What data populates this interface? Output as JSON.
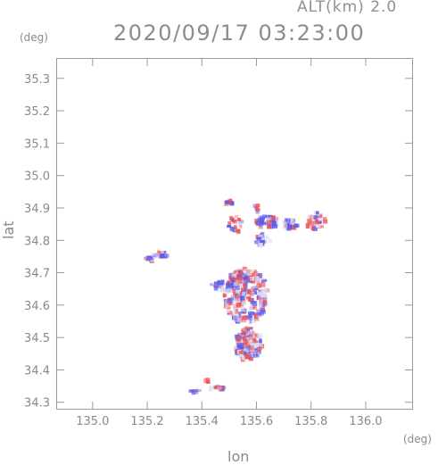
{
  "header": {
    "altitude_label": "ALT(km) 2.0",
    "timestamp": "2020/09/17 03:23:00"
  },
  "chart_data": {
    "type": "heatmap",
    "title": "2020/09/17 03:23:00",
    "xlabel": "lon",
    "ylabel": "lat",
    "x_unit": "(deg)",
    "y_unit": "(deg)",
    "xlim": [
      134.87,
      136.17
    ],
    "ylim": [
      34.28,
      35.36
    ],
    "xticks": [
      "135.0",
      "135.2",
      "135.4",
      "135.6",
      "135.8",
      "136.0"
    ],
    "yticks": [
      "34.3",
      "34.4",
      "34.5",
      "34.6",
      "34.7",
      "34.8",
      "34.9",
      "35.0",
      "35.1",
      "35.2",
      "35.3"
    ],
    "grid": false,
    "colors": {
      "positive": "#ee5555",
      "negative": "#5b5bee",
      "neutral": "#dcdcf4"
    },
    "clusters": [
      {
        "lon": 135.245,
        "lat": 34.757,
        "w": 0.06,
        "h": 0.02,
        "sign": -1,
        "n": 18
      },
      {
        "lon": 135.21,
        "lat": 34.742,
        "w": 0.04,
        "h": 0.012,
        "sign": -1,
        "n": 10
      },
      {
        "lon": 135.56,
        "lat": 34.63,
        "w": 0.16,
        "h": 0.17,
        "sign": 0,
        "n": 260
      },
      {
        "lon": 135.57,
        "lat": 34.48,
        "w": 0.1,
        "h": 0.1,
        "sign": 0,
        "n": 160
      },
      {
        "lon": 135.55,
        "lat": 34.69,
        "w": 0.12,
        "h": 0.03,
        "sign": 1,
        "n": 40
      },
      {
        "lon": 135.48,
        "lat": 34.66,
        "w": 0.09,
        "h": 0.03,
        "sign": -1,
        "n": 24
      },
      {
        "lon": 135.52,
        "lat": 34.85,
        "w": 0.05,
        "h": 0.05,
        "sign": 1,
        "n": 20
      },
      {
        "lon": 135.5,
        "lat": 34.915,
        "w": 0.03,
        "h": 0.03,
        "sign": 1,
        "n": 10
      },
      {
        "lon": 135.64,
        "lat": 34.86,
        "w": 0.09,
        "h": 0.04,
        "sign": -1,
        "n": 40
      },
      {
        "lon": 135.72,
        "lat": 34.85,
        "w": 0.06,
        "h": 0.03,
        "sign": 0,
        "n": 30
      },
      {
        "lon": 135.82,
        "lat": 34.86,
        "w": 0.08,
        "h": 0.05,
        "sign": 1,
        "n": 30
      },
      {
        "lon": 135.62,
        "lat": 34.8,
        "w": 0.06,
        "h": 0.04,
        "sign": -1,
        "n": 22
      },
      {
        "lon": 135.6,
        "lat": 34.9,
        "w": 0.02,
        "h": 0.02,
        "sign": -1,
        "n": 6
      },
      {
        "lon": 135.375,
        "lat": 34.333,
        "w": 0.04,
        "h": 0.008,
        "sign": -1,
        "n": 10
      },
      {
        "lon": 135.46,
        "lat": 34.345,
        "w": 0.06,
        "h": 0.01,
        "sign": 0,
        "n": 12
      },
      {
        "lon": 135.42,
        "lat": 34.367,
        "w": 0.02,
        "h": 0.01,
        "sign": 1,
        "n": 4
      }
    ]
  }
}
